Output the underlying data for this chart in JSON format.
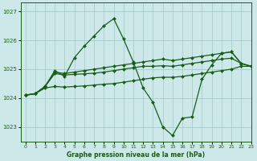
{
  "title": "Graphe pression niveau de la mer (hPa)",
  "bg_color": "#cce8e8",
  "grid_color": "#aacccc",
  "line_color": "#1a5c1a",
  "xlim": [
    -0.5,
    23
  ],
  "ylim": [
    1022.5,
    1027.3
  ],
  "yticks": [
    1023,
    1024,
    1025,
    1026,
    1027
  ],
  "xticks": [
    0,
    1,
    2,
    3,
    4,
    5,
    6,
    7,
    8,
    9,
    10,
    11,
    12,
    13,
    14,
    15,
    16,
    17,
    18,
    19,
    20,
    21,
    22,
    23
  ],
  "series": [
    {
      "x": [
        0,
        1,
        2,
        3,
        4,
        5,
        6,
        7,
        8,
        9,
        10,
        11,
        12,
        13,
        14,
        15,
        16,
        17,
        18,
        19,
        20,
        21,
        22,
        23
      ],
      "y": [
        1024.1,
        1024.15,
        1024.4,
        1024.95,
        1024.75,
        1025.4,
        1025.8,
        1026.15,
        1026.5,
        1026.75,
        1026.05,
        1025.25,
        1024.35,
        1023.85,
        1023.0,
        1022.7,
        1023.3,
        1023.35,
        1024.65,
        1025.15,
        1025.55,
        1025.6,
        1025.2,
        1025.1
      ]
    },
    {
      "x": [
        0,
        1,
        2,
        3,
        4,
        5,
        6,
        7,
        8,
        9,
        10,
        11,
        12,
        13,
        14,
        15,
        16,
        17,
        18,
        19,
        20,
        21,
        22,
        23
      ],
      "y": [
        1024.1,
        1024.15,
        1024.4,
        1024.9,
        1024.85,
        1024.9,
        1024.95,
        1025.0,
        1025.05,
        1025.1,
        1025.15,
        1025.2,
        1025.25,
        1025.3,
        1025.35,
        1025.3,
        1025.35,
        1025.4,
        1025.45,
        1025.5,
        1025.55,
        1025.6,
        1025.2,
        1025.1
      ]
    },
    {
      "x": [
        0,
        1,
        2,
        3,
        4,
        5,
        6,
        7,
        8,
        9,
        10,
        11,
        12,
        13,
        14,
        15,
        16,
        17,
        18,
        19,
        20,
        21,
        22,
        23
      ],
      "y": [
        1024.1,
        1024.15,
        1024.4,
        1024.85,
        1024.8,
        1024.82,
        1024.84,
        1024.86,
        1024.9,
        1024.95,
        1025.0,
        1025.05,
        1025.1,
        1025.1,
        1025.12,
        1025.1,
        1025.15,
        1025.2,
        1025.25,
        1025.3,
        1025.35,
        1025.38,
        1025.2,
        1025.1
      ]
    },
    {
      "x": [
        0,
        1,
        2,
        3,
        4,
        5,
        6,
        7,
        8,
        9,
        10,
        11,
        12,
        13,
        14,
        15,
        16,
        17,
        18,
        19,
        20,
        21,
        22,
        23
      ],
      "y": [
        1024.1,
        1024.15,
        1024.35,
        1024.4,
        1024.38,
        1024.4,
        1024.42,
        1024.45,
        1024.48,
        1024.5,
        1024.55,
        1024.6,
        1024.65,
        1024.7,
        1024.72,
        1024.72,
        1024.75,
        1024.8,
        1024.85,
        1024.9,
        1024.95,
        1025.0,
        1025.1,
        1025.1
      ]
    }
  ]
}
